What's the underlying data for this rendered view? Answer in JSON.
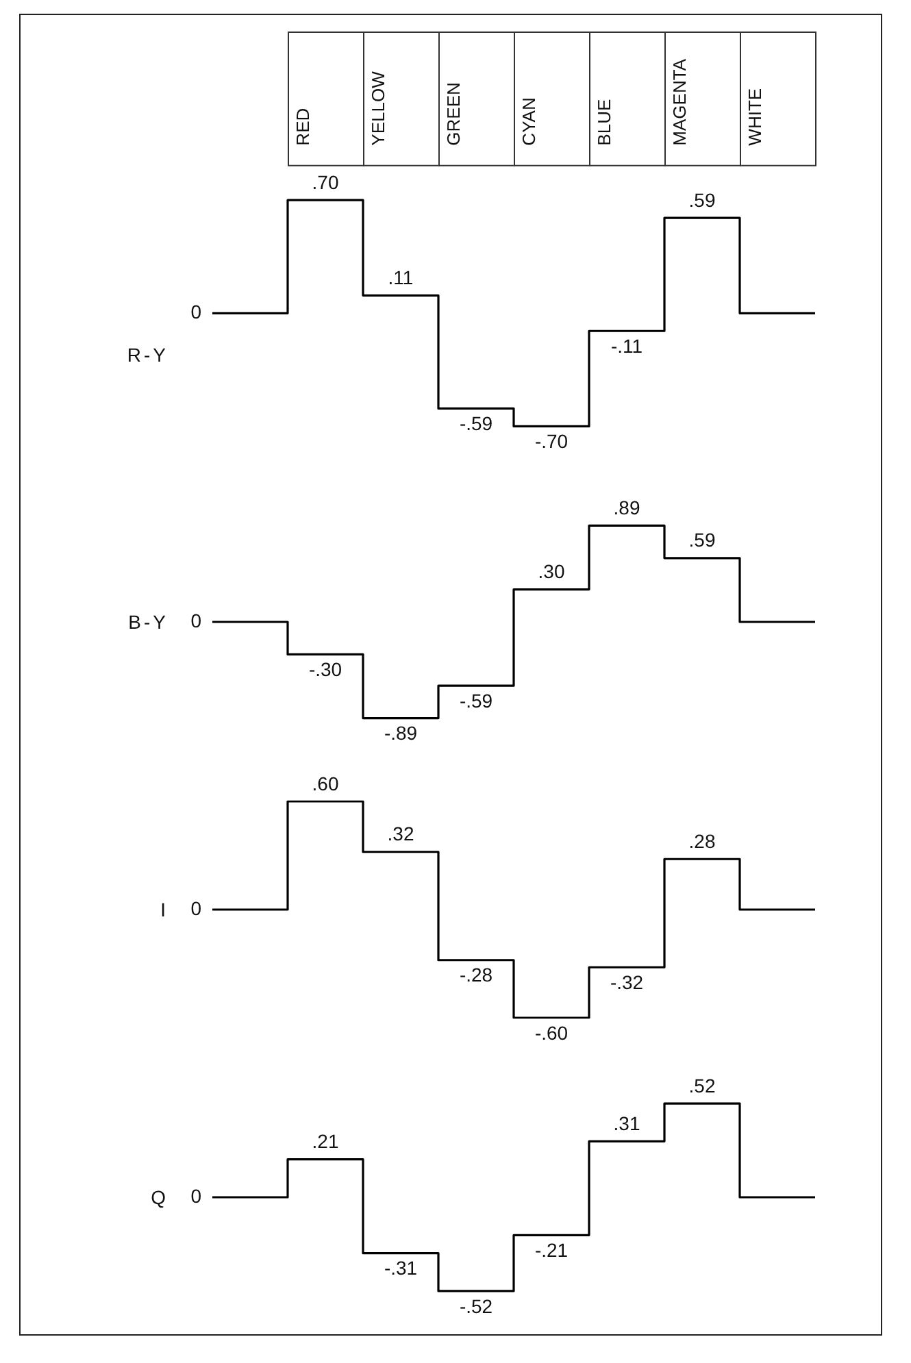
{
  "chart_data": [
    {
      "type": "step",
      "ylabel": "R-Y",
      "categories": [
        null,
        "RED",
        "YELLOW",
        "GREEN",
        "CYAN",
        "BLUE",
        "MAGENTA",
        "WHITE"
      ],
      "values": [
        0,
        0.7,
        0.11,
        -0.59,
        -0.7,
        -0.11,
        0.59,
        0
      ],
      "value_labels": [
        null,
        ".70",
        ".11",
        "-.59",
        "-.70",
        "-.11",
        ".59",
        null
      ],
      "color": "#000000",
      "marker": "none",
      "annotations": [
        "0"
      ],
      "tick_labels": "x"
    },
    {
      "type": "step",
      "ylabel": "B-Y",
      "categories": [
        null,
        null,
        null,
        null,
        null,
        null,
        null,
        null
      ],
      "values": [
        0,
        -0.3,
        -0.89,
        -0.59,
        0.3,
        0.89,
        0.59,
        0
      ],
      "value_labels": [
        null,
        "-.30",
        "-.89",
        "-.59",
        ".30",
        ".89",
        ".59",
        null
      ],
      "color": "#000000",
      "marker": "none",
      "annotations": [
        "0"
      ],
      "tick_labels": false
    },
    {
      "type": "step",
      "ylabel": "I",
      "categories": [
        null,
        null,
        null,
        null,
        null,
        null,
        null,
        null
      ],
      "values": [
        0,
        0.6,
        0.32,
        -0.28,
        -0.6,
        -0.32,
        0.28,
        0
      ],
      "value_labels": [
        null,
        ".60",
        ".32",
        "-.28",
        "-.60",
        "-.32",
        ".28",
        null
      ],
      "color": "#000000",
      "marker": "none",
      "annotations": [
        "0"
      ],
      "tick_labels": false
    },
    {
      "type": "step",
      "ylabel": "Q",
      "categories": [
        null,
        null,
        null,
        null,
        null,
        null,
        null,
        null
      ],
      "values": [
        0,
        0.21,
        -0.31,
        -0.52,
        -0.21,
        0.31,
        0.52,
        0
      ],
      "value_labels": [
        null,
        ".21",
        "-.31",
        "-.52",
        "-.21",
        ".31",
        ".52",
        null
      ],
      "color": "#000000",
      "marker": "none",
      "annotations": [
        "0"
      ],
      "tick_labels": false
    }
  ]
}
